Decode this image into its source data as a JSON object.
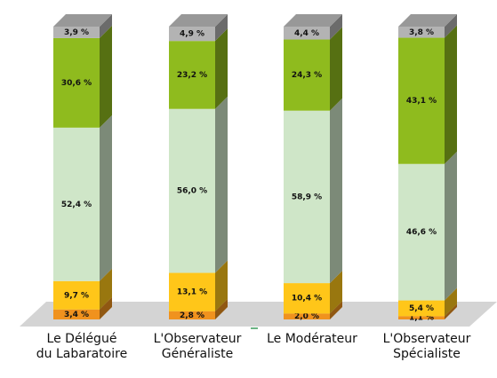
{
  "chart_data": {
    "type": "stacked_bar",
    "categories": [
      "Le Délégué\ndu Labaratoire",
      "L'Observateur\nGénéraliste",
      "Le Modérateur",
      "L'Observateur\nSpécialiste"
    ],
    "ylim": [
      0,
      100
    ],
    "series": [
      {
        "color": "#f0921e",
        "values": [
          3.4,
          2.8,
          2.0,
          1.1
        ],
        "value_labels": [
          "3,4 %",
          "2,8 %",
          "2,0 %",
          "1,1 %"
        ]
      },
      {
        "color": "#ffc619",
        "values": [
          9.7,
          13.1,
          10.4,
          5.4
        ],
        "value_labels": [
          "9,7 %",
          "13,1 %",
          "10,4 %",
          "5,4 %"
        ]
      },
      {
        "color": "#cfe6c8",
        "values": [
          52.4,
          56.0,
          58.9,
          46.6
        ],
        "value_labels": [
          "52,4 %",
          "56,0 %",
          "58,9 %",
          "46,6 %"
        ]
      },
      {
        "color": "#8fbb1e",
        "values": [
          30.6,
          23.2,
          24.3,
          43.1
        ],
        "value_labels": [
          "30,6 %",
          "23,2 %",
          "24,3 %",
          "43,1 %"
        ]
      },
      {
        "color": "#b3b3b3",
        "values": [
          3.9,
          4.9,
          4.4,
          3.8
        ],
        "value_labels": [
          "3,9 %",
          "4,9 %",
          "4,4 %",
          "3,8 %"
        ]
      }
    ]
  }
}
